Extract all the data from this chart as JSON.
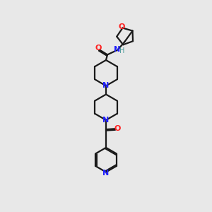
{
  "bg_color": "#e8e8e8",
  "bond_color": "#1a1a1a",
  "N_color": "#2020ff",
  "O_color": "#ff2020",
  "H_color": "#4a9a9a",
  "lw": 1.6,
  "figsize": [
    3.0,
    3.0
  ],
  "dpi": 100,
  "xlim": [
    0,
    10
  ],
  "ylim": [
    0,
    17
  ]
}
